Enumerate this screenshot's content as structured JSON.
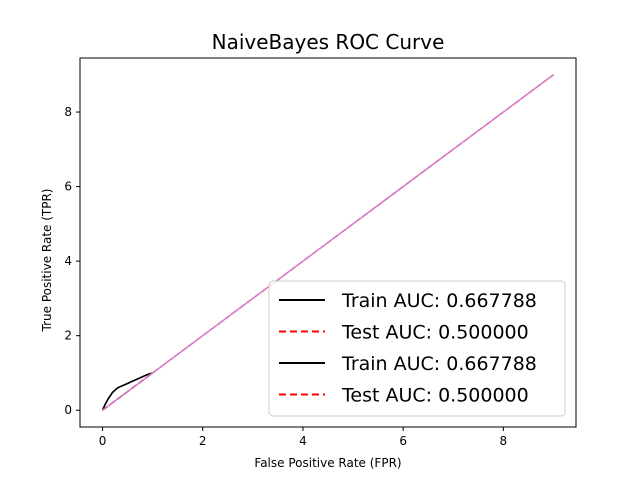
{
  "chart_data": {
    "type": "line",
    "title": "NaiveBayes ROC Curve",
    "xlabel": "False Positive Rate (FPR)",
    "ylabel": "True Positive Rate (TPR)",
    "xlim": [
      -0.45,
      9.45
    ],
    "ylim": [
      -0.45,
      9.45
    ],
    "xticks": [
      0,
      2,
      4,
      6,
      8
    ],
    "yticks": [
      0,
      2,
      4,
      6,
      8
    ],
    "grid": false,
    "legend_position": "lower-right",
    "legend": [
      {
        "label": "Train AUC: 0.667788",
        "color": "#000000",
        "dash": "solid"
      },
      {
        "label": "Test AUC: 0.500000",
        "color": "#ff0000",
        "dash": "dashed"
      },
      {
        "label": "Train AUC: 0.667788",
        "color": "#000000",
        "dash": "solid"
      },
      {
        "label": "Test AUC: 0.500000",
        "color": "#ff0000",
        "dash": "dashed"
      }
    ],
    "series": [
      {
        "color": "#000000",
        "dash": "solid",
        "x": [
          0,
          0.05,
          0.12,
          0.2,
          0.3,
          0.5,
          0.7,
          0.9,
          1.0
        ],
        "y": [
          0,
          0.15,
          0.32,
          0.48,
          0.6,
          0.72,
          0.84,
          0.96,
          1.0
        ]
      },
      {
        "color": "#ff0000",
        "dash": "dashed",
        "x": [
          0,
          1.0
        ],
        "y": [
          0,
          1.0
        ]
      },
      {
        "color": "#000000",
        "dash": "solid",
        "x": [
          0,
          0.05,
          0.12,
          0.2,
          0.3,
          0.5,
          0.7,
          0.9,
          1.0
        ],
        "y": [
          0,
          0.15,
          0.32,
          0.48,
          0.6,
          0.72,
          0.84,
          0.96,
          1.0
        ]
      },
      {
        "color": "#ff0000",
        "dash": "dashed",
        "x": [
          0,
          1.0
        ],
        "y": [
          0,
          1.0
        ]
      },
      {
        "color": "#1f77b4",
        "dash": "dashed",
        "x": [
          0,
          9
        ],
        "y": [
          0,
          9
        ]
      },
      {
        "color": "#e377c2",
        "dash": "solid",
        "x": [
          0,
          9
        ],
        "y": [
          0,
          9
        ]
      }
    ]
  }
}
